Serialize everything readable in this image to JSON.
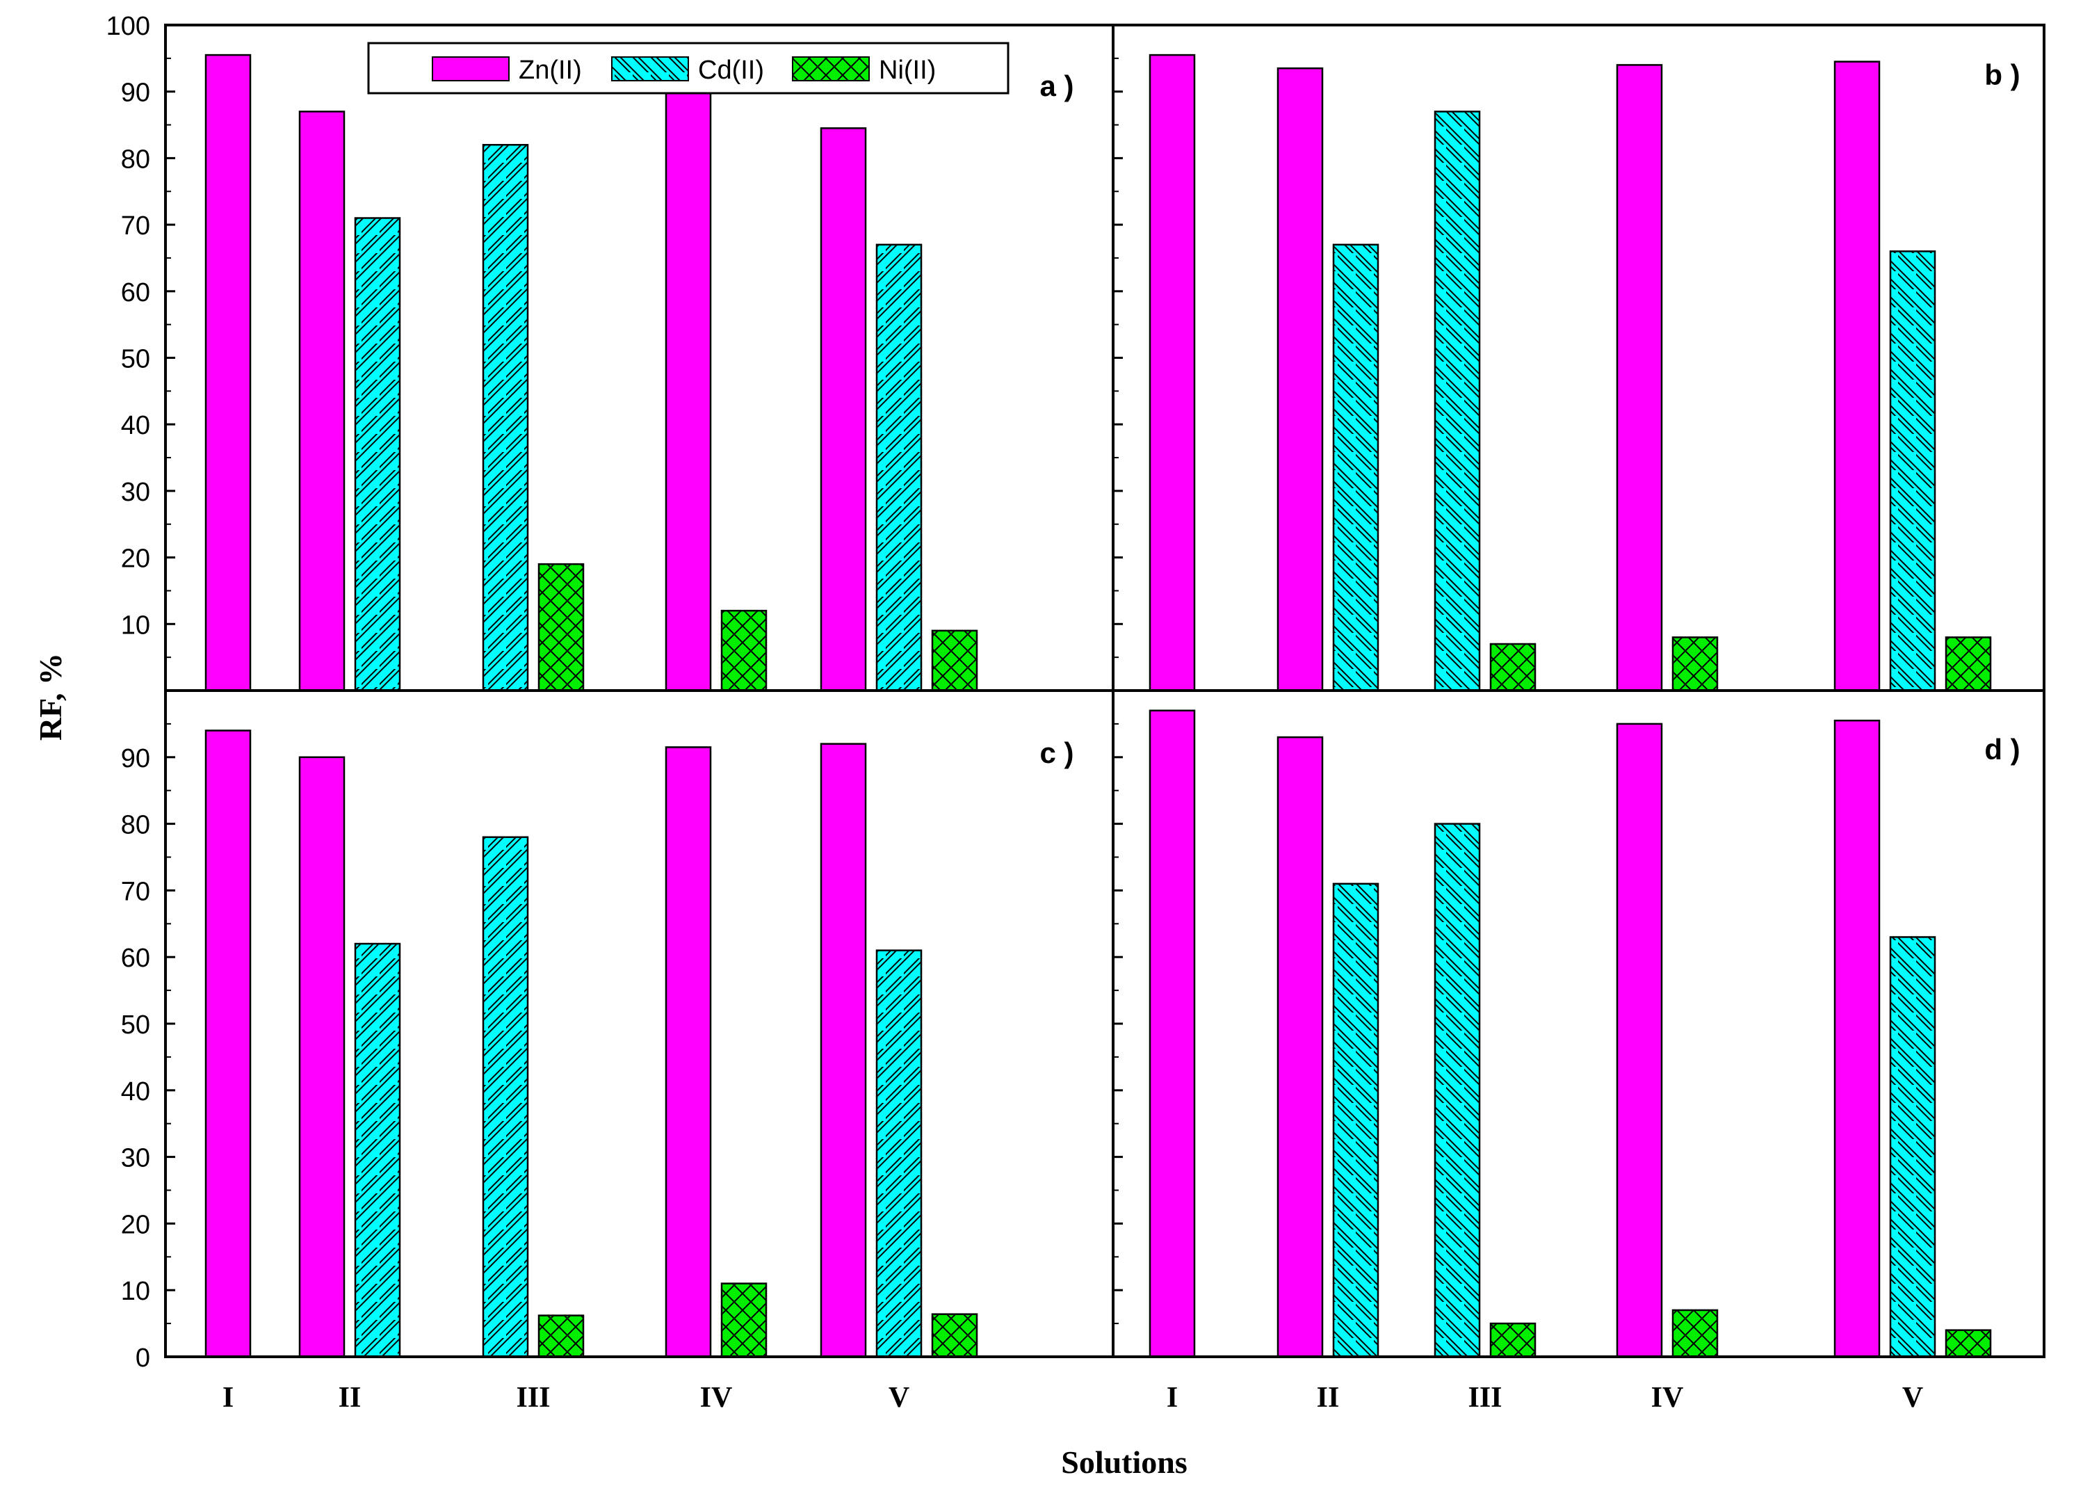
{
  "figure": {
    "y_axis_label": "RF, %",
    "x_axis_label": "Solutions",
    "legend": [
      {
        "key": "zn",
        "label": "Zn(II)"
      },
      {
        "key": "cd",
        "label": "Cd(II)"
      },
      {
        "key": "ni",
        "label": "Ni(II)"
      }
    ]
  },
  "chart_data": [
    {
      "panel": "a",
      "panel_label": "a )",
      "type": "bar",
      "categories": [
        "I",
        "II",
        "III",
        "IV",
        "V"
      ],
      "series": [
        {
          "name": "Zn(II)",
          "values": [
            95.5,
            87,
            null,
            90,
            84.5
          ]
        },
        {
          "name": "Cd(II)",
          "values": [
            null,
            71,
            82,
            null,
            67
          ]
        },
        {
          "name": "Ni(II)",
          "values": [
            null,
            null,
            19,
            12,
            9
          ]
        }
      ],
      "ylim": [
        0,
        100
      ],
      "yticks": [
        10,
        20,
        30,
        40,
        50,
        60,
        70,
        80,
        90,
        100
      ],
      "xlabel": "Solutions",
      "ylabel": "RF, %",
      "legend_position": "top"
    },
    {
      "panel": "b",
      "panel_label": "b )",
      "type": "bar",
      "categories": [
        "I",
        "II",
        "III",
        "IV",
        "V"
      ],
      "series": [
        {
          "name": "Zn(II)",
          "values": [
            95.5,
            93.5,
            null,
            94,
            94.5
          ]
        },
        {
          "name": "Cd(II)",
          "values": [
            null,
            67,
            87,
            null,
            66
          ]
        },
        {
          "name": "Ni(II)",
          "values": [
            null,
            null,
            7,
            8,
            8
          ]
        }
      ],
      "ylim": [
        0,
        100
      ],
      "yticks": [
        10,
        20,
        30,
        40,
        50,
        60,
        70,
        80,
        90
      ],
      "xlabel": "Solutions",
      "ylabel": "RF, %"
    },
    {
      "panel": "c",
      "panel_label": "c )",
      "type": "bar",
      "categories": [
        "I",
        "II",
        "III",
        "IV",
        "V"
      ],
      "series": [
        {
          "name": "Zn(II)",
          "values": [
            94,
            90,
            null,
            91.5,
            92
          ]
        },
        {
          "name": "Cd(II)",
          "values": [
            null,
            62,
            78,
            null,
            61
          ]
        },
        {
          "name": "Ni(II)",
          "values": [
            null,
            null,
            6.2,
            11,
            6.4
          ]
        }
      ],
      "ylim": [
        0,
        100
      ],
      "yticks": [
        0,
        10,
        20,
        30,
        40,
        50,
        60,
        70,
        80,
        90
      ],
      "xlabel": "Solutions",
      "ylabel": "RF, %"
    },
    {
      "panel": "d",
      "panel_label": "d )",
      "type": "bar",
      "categories": [
        "I",
        "II",
        "III",
        "IV",
        "V"
      ],
      "series": [
        {
          "name": "Zn(II)",
          "values": [
            97,
            93,
            null,
            95,
            95.5
          ]
        },
        {
          "name": "Cd(II)",
          "values": [
            null,
            71,
            80,
            null,
            63
          ]
        },
        {
          "name": "Ni(II)",
          "values": [
            null,
            null,
            5,
            7,
            4
          ]
        }
      ],
      "ylim": [
        0,
        100
      ],
      "yticks": [
        10,
        20,
        30,
        40,
        50,
        60,
        70,
        80,
        90
      ],
      "xlabel": "Solutions",
      "ylabel": "RF, %"
    }
  ],
  "colors": {
    "zn": "#ff00ff",
    "cd": "#00ffff",
    "ni": "#00ee00",
    "axis": "#000000",
    "background": "#ffffff"
  }
}
